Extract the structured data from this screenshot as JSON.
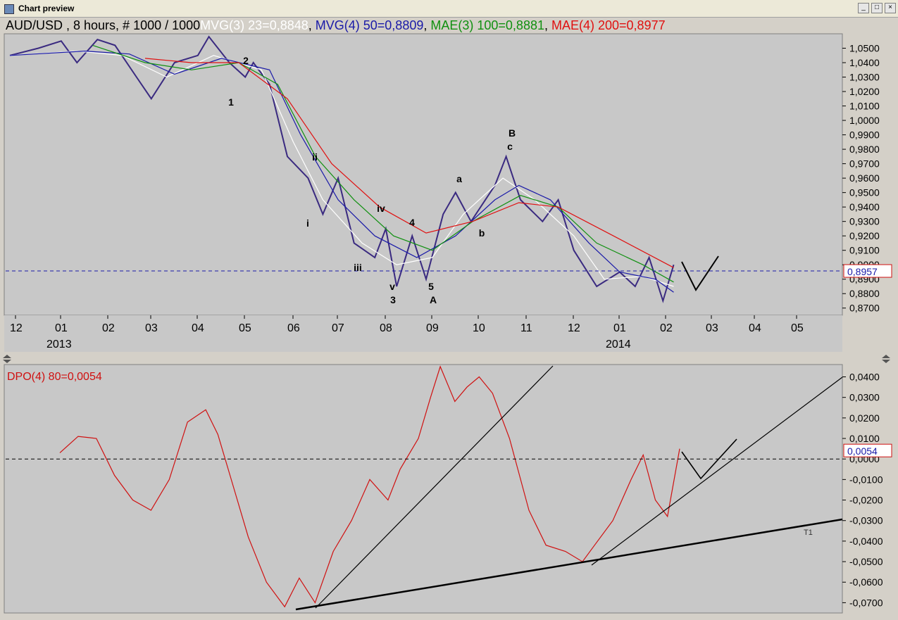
{
  "window": {
    "title": "Chart preview",
    "controls": [
      "minimize-icon",
      "maximize-icon",
      "close-icon"
    ]
  },
  "price_panel": {
    "header": [
      {
        "text": "AUD/USD , 8 hours, # 1000 / 1000",
        "color": "#000000"
      },
      {
        "text": "MVG(3) 23=0,8848",
        "color": "#ffffff"
      },
      {
        "text": ", ",
        "color": "#000000"
      },
      {
        "text": "MVG(4) 50=0,8809",
        "color": "#1a1aa8"
      },
      {
        "text": ", ",
        "color": "#000000"
      },
      {
        "text": "MAE(3) 100=0,8881",
        "color": "#109010"
      },
      {
        "text": ", ",
        "color": "#000000"
      },
      {
        "text": "MAE(4) 200=0,8977",
        "color": "#e01010"
      }
    ],
    "y_ticks": [
      "1,0500",
      "1,0400",
      "1,0300",
      "1,0200",
      "1,0100",
      "1,0000",
      "0,9900",
      "0,9800",
      "0,9700",
      "0,9600",
      "0,9500",
      "0,9400",
      "0,9300",
      "0,9200",
      "0,9100",
      "0,9000",
      "0,8900",
      "0,8800",
      "0,8700"
    ],
    "last_value_label": "0,8957"
  },
  "dpo_panel": {
    "header": "DPO(4) 80=0,0054",
    "y_ticks": [
      "0,0400",
      "0,0300",
      "0,0200",
      "0,0100",
      "0,0000",
      "-0,0100",
      "-0,0200",
      "-0,0300",
      "-0,0400",
      "-0,0500",
      "-0,0600",
      "-0,0700"
    ],
    "last_value_label": "0,0054",
    "trendline_label": "T1"
  },
  "x_axis": {
    "months": [
      "12",
      "01",
      "02",
      "03",
      "04",
      "05",
      "06",
      "07",
      "08",
      "09",
      "10",
      "11",
      "12",
      "01",
      "02",
      "03",
      "04",
      "05"
    ],
    "years": [
      "2013",
      "2014"
    ]
  },
  "wave_labels": [
    "2",
    "1",
    "ii",
    "i",
    "iv",
    "iii",
    "4",
    "v",
    "3",
    "5",
    "A",
    "a",
    "b",
    "B",
    "c"
  ],
  "chart_data": [
    {
      "type": "line",
      "title": "AUD/USD , 8 hours, # 1000 / 1000",
      "x_unit": "month",
      "x": [
        "2012-12",
        "2013-01",
        "2013-02",
        "2013-03",
        "2013-04",
        "2013-05",
        "2013-06",
        "2013-07",
        "2013-08",
        "2013-09",
        "2013-10",
        "2013-11",
        "2013-12",
        "2014-01",
        "2014-02"
      ],
      "ylim": [
        0.865,
        1.06
      ],
      "series": [
        {
          "name": "AUD/USD",
          "color": "#3a2a80",
          "points": [
            [
              "2012-12-01",
              1.045
            ],
            [
              "2012-12-20",
              1.05
            ],
            [
              "2013-01-05",
              1.055
            ],
            [
              "2013-01-15",
              1.04
            ],
            [
              "2013-01-28",
              1.056
            ],
            [
              "2013-02-10",
              1.052
            ],
            [
              "2013-02-25",
              1.03
            ],
            [
              "2013-03-05",
              1.015
            ],
            [
              "2013-03-20",
              1.04
            ],
            [
              "2013-04-05",
              1.045
            ],
            [
              "2013-04-12",
              1.058
            ],
            [
              "2013-04-25",
              1.04
            ],
            [
              "2013-05-05",
              1.03
            ],
            [
              "2013-05-10",
              1.04
            ],
            [
              "2013-05-20",
              1.025
            ],
            [
              "2013-06-01",
              0.975
            ],
            [
              "2013-06-15",
              0.96
            ],
            [
              "2013-06-25",
              0.935
            ],
            [
              "2013-07-05",
              0.96
            ],
            [
              "2013-07-15",
              0.915
            ],
            [
              "2013-07-28",
              0.905
            ],
            [
              "2013-08-05",
              0.925
            ],
            [
              "2013-08-12",
              0.885
            ],
            [
              "2013-08-22",
              0.92
            ],
            [
              "2013-09-01",
              0.89
            ],
            [
              "2013-09-12",
              0.935
            ],
            [
              "2013-09-20",
              0.95
            ],
            [
              "2013-09-30",
              0.93
            ],
            [
              "2013-10-15",
              0.955
            ],
            [
              "2013-10-22",
              0.975
            ],
            [
              "2013-11-01",
              0.945
            ],
            [
              "2013-11-15",
              0.93
            ],
            [
              "2013-11-25",
              0.945
            ],
            [
              "2013-12-05",
              0.91
            ],
            [
              "2013-12-20",
              0.885
            ],
            [
              "2014-01-05",
              0.895
            ],
            [
              "2014-01-15",
              0.885
            ],
            [
              "2014-01-24",
              0.905
            ],
            [
              "2014-02-03",
              0.875
            ],
            [
              "2014-02-10",
              0.9
            ]
          ]
        },
        {
          "name": "MVG(3) 23",
          "color": "#ffffff",
          "points": [
            [
              "2012-12-01",
              1.045
            ],
            [
              "2013-01-15",
              1.048
            ],
            [
              "2013-02-15",
              1.045
            ],
            [
              "2013-03-15",
              1.03
            ],
            [
              "2013-04-15",
              1.045
            ],
            [
              "2013-05-15",
              1.035
            ],
            [
              "2013-06-05",
              0.985
            ],
            [
              "2013-06-25",
              0.945
            ],
            [
              "2013-07-20",
              0.915
            ],
            [
              "2013-08-12",
              0.9
            ],
            [
              "2013-09-05",
              0.905
            ],
            [
              "2013-09-25",
              0.935
            ],
            [
              "2013-10-20",
              0.96
            ],
            [
              "2013-11-10",
              0.945
            ],
            [
              "2013-12-05",
              0.92
            ],
            [
              "2013-12-25",
              0.89
            ],
            [
              "2014-01-20",
              0.892
            ],
            [
              "2014-02-10",
              0.885
            ]
          ]
        },
        {
          "name": "MVG(4) 50",
          "color": "#1a1aa8",
          "points": [
            [
              "2012-12-01",
              1.045
            ],
            [
              "2013-01-20",
              1.048
            ],
            [
              "2013-02-20",
              1.046
            ],
            [
              "2013-03-20",
              1.032
            ],
            [
              "2013-04-20",
              1.043
            ],
            [
              "2013-05-20",
              1.035
            ],
            [
              "2013-06-10",
              0.99
            ],
            [
              "2013-07-05",
              0.945
            ],
            [
              "2013-07-28",
              0.92
            ],
            [
              "2013-08-25",
              0.905
            ],
            [
              "2013-09-20",
              0.92
            ],
            [
              "2013-10-15",
              0.945
            ],
            [
              "2013-10-30",
              0.955
            ],
            [
              "2013-11-20",
              0.945
            ],
            [
              "2013-12-15",
              0.915
            ],
            [
              "2014-01-05",
              0.895
            ],
            [
              "2014-01-28",
              0.89
            ],
            [
              "2014-02-10",
              0.881
            ]
          ]
        },
        {
          "name": "MAE(3) 100",
          "color": "#109010",
          "points": [
            [
              "2013-01-25",
              1.052
            ],
            [
              "2013-03-01",
              1.04
            ],
            [
              "2013-04-01",
              1.035
            ],
            [
              "2013-05-01",
              1.04
            ],
            [
              "2013-05-25",
              1.025
            ],
            [
              "2013-06-20",
              0.975
            ],
            [
              "2013-07-15",
              0.945
            ],
            [
              "2013-08-10",
              0.92
            ],
            [
              "2013-09-05",
              0.91
            ],
            [
              "2013-10-01",
              0.93
            ],
            [
              "2013-11-01",
              0.948
            ],
            [
              "2013-11-25",
              0.94
            ],
            [
              "2013-12-20",
              0.915
            ],
            [
              "2014-01-20",
              0.9
            ],
            [
              "2014-02-10",
              0.888
            ]
          ]
        },
        {
          "name": "MAE(4) 200",
          "color": "#e01010",
          "points": [
            [
              "2013-03-01",
              1.043
            ],
            [
              "2013-04-01",
              1.04
            ],
            [
              "2013-05-01",
              1.04
            ],
            [
              "2013-06-01",
              1.015
            ],
            [
              "2013-07-01",
              0.97
            ],
            [
              "2013-08-01",
              0.94
            ],
            [
              "2013-09-01",
              0.922
            ],
            [
              "2013-10-01",
              0.93
            ],
            [
              "2013-10-30",
              0.943
            ],
            [
              "2013-11-25",
              0.94
            ],
            [
              "2014-01-01",
              0.92
            ],
            [
              "2014-02-10",
              0.898
            ]
          ]
        }
      ],
      "reference_line": {
        "y": 0.8957,
        "style": "dashed",
        "color": "#1a1aa8"
      }
    },
    {
      "type": "line",
      "title": "DPO(4) 80=0,0054",
      "x_unit": "month",
      "ylim": [
        -0.075,
        0.046
      ],
      "series": [
        {
          "name": "DPO(4) 80",
          "color": "#d01010",
          "points": [
            [
              "2013-01-05",
              0.003
            ],
            [
              "2013-01-20",
              0.011
            ],
            [
              "2013-02-05",
              0.01
            ],
            [
              "2013-02-20",
              -0.008
            ],
            [
              "2013-03-05",
              -0.02
            ],
            [
              "2013-03-20",
              -0.025
            ],
            [
              "2013-04-05",
              -0.01
            ],
            [
              "2013-04-20",
              0.018
            ],
            [
              "2013-05-05",
              0.024
            ],
            [
              "2013-05-15",
              0.012
            ],
            [
              "2013-05-25",
              -0.008
            ],
            [
              "2013-06-10",
              -0.038
            ],
            [
              "2013-06-25",
              -0.06
            ],
            [
              "2013-07-10",
              -0.072
            ],
            [
              "2013-07-22",
              -0.058
            ],
            [
              "2013-08-05",
              -0.07
            ],
            [
              "2013-08-20",
              -0.045
            ],
            [
              "2013-09-05",
              -0.03
            ],
            [
              "2013-09-20",
              -0.01
            ],
            [
              "2013-10-05",
              -0.02
            ],
            [
              "2013-10-15",
              -0.005
            ],
            [
              "2013-10-30",
              0.01
            ],
            [
              "2013-11-10",
              0.03
            ],
            [
              "2013-11-18",
              0.045
            ],
            [
              "2013-11-30",
              0.028
            ],
            [
              "2013-12-10",
              0.035
            ],
            [
              "2013-12-20",
              0.04
            ],
            [
              "2014-01-01",
              0.032
            ],
            [
              "2014-01-15",
              0.01
            ],
            [
              "2014-02-01",
              -0.025
            ],
            [
              "2014-02-15",
              -0.042
            ],
            [
              "2014-03-01",
              -0.045
            ],
            [
              "2014-03-15",
              -0.05
            ],
            [
              "2014-03-25",
              -0.042
            ],
            [
              "2014-04-10",
              -0.03
            ],
            [
              "2014-04-25",
              -0.01
            ],
            [
              "2014-05-05",
              0.002
            ],
            [
              "2014-05-15",
              -0.02
            ],
            [
              "2014-05-25",
              -0.028
            ],
            [
              "2014-06-05",
              0.005
            ]
          ]
        }
      ],
      "reference_line": {
        "y": 0.0,
        "style": "dashed",
        "color": "#000000"
      }
    }
  ]
}
